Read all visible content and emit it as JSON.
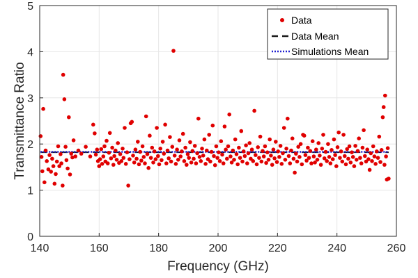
{
  "chart_data": {
    "type": "scatter",
    "title": "",
    "xlabel": "Frequency (GHz)",
    "ylabel": "Transmittance Ratio",
    "xlim": [
      140,
      260
    ],
    "ylim": [
      0,
      5
    ],
    "x_ticks": [
      "140",
      "160",
      "180",
      "200",
      "220",
      "240",
      "260"
    ],
    "y_ticks": [
      "0",
      "1",
      "2",
      "3",
      "4",
      "5"
    ],
    "grid": true,
    "legend": {
      "placement": "top-right",
      "entries": [
        "Data",
        "Data Mean",
        "Simulations Mean"
      ]
    },
    "colors": {
      "data": "#e00000",
      "data_mean": "#1a1a1a",
      "sim_mean": "#1f1fd0"
    },
    "series": [
      {
        "name": "Data",
        "style": "markers",
        "points": [
          [
            140.3,
            2.17
          ],
          [
            140.6,
            1.72
          ],
          [
            140.9,
            1.41
          ],
          [
            141.2,
            2.76
          ],
          [
            141.6,
            1.17
          ],
          [
            142.0,
            1.86
          ],
          [
            142.4,
            1.63
          ],
          [
            142.9,
            1.45
          ],
          [
            143.3,
            1.76
          ],
          [
            143.8,
            1.4
          ],
          [
            144.2,
            1.68
          ],
          [
            144.6,
            1.52
          ],
          [
            145.0,
            1.14
          ],
          [
            145.4,
            1.35
          ],
          [
            145.8,
            1.62
          ],
          [
            146.2,
            1.95
          ],
          [
            146.6,
            1.52
          ],
          [
            147.0,
            1.78
          ],
          [
            147.3,
            1.58
          ],
          [
            147.7,
            1.1
          ],
          [
            147.9,
            3.5
          ],
          [
            148.3,
            2.97
          ],
          [
            148.7,
            1.94
          ],
          [
            149.0,
            1.65
          ],
          [
            149.4,
            1.47
          ],
          [
            149.8,
            2.58
          ],
          [
            150.2,
            1.34
          ],
          [
            150.6,
            1.79
          ],
          [
            151.0,
            1.71
          ],
          [
            151.4,
            2.08
          ],
          [
            152.0,
            1.73
          ],
          [
            153.0,
            1.86
          ],
          [
            154.0,
            1.79
          ],
          [
            155.5,
            1.94
          ],
          [
            157.0,
            1.73
          ],
          [
            158.0,
            2.42
          ],
          [
            158.5,
            2.23
          ],
          [
            158.9,
            1.77
          ],
          [
            159.3,
            1.88
          ],
          [
            159.6,
            1.63
          ],
          [
            160.0,
            1.52
          ],
          [
            160.3,
            1.67
          ],
          [
            160.7,
            1.89
          ],
          [
            161.0,
            1.57
          ],
          [
            161.4,
            1.73
          ],
          [
            161.8,
            1.95
          ],
          [
            162.1,
            1.62
          ],
          [
            162.5,
            2.07
          ],
          [
            162.9,
            1.58
          ],
          [
            163.3,
            1.81
          ],
          [
            163.6,
            2.24
          ],
          [
            164.0,
            1.69
          ],
          [
            164.4,
            1.92
          ],
          [
            164.8,
            1.55
          ],
          [
            165.1,
            1.74
          ],
          [
            165.5,
            1.86
          ],
          [
            165.9,
            1.66
          ],
          [
            166.3,
            2.02
          ],
          [
            166.7,
            1.59
          ],
          [
            167.1,
            1.78
          ],
          [
            167.5,
            1.63
          ],
          [
            167.9,
            1.9
          ],
          [
            168.2,
            1.7
          ],
          [
            168.6,
            2.35
          ],
          [
            169.0,
            1.57
          ],
          [
            169.4,
            1.82
          ],
          [
            169.8,
            1.1
          ],
          [
            170.2,
            1.67
          ],
          [
            170.6,
            2.45
          ],
          [
            171.0,
            2.48
          ],
          [
            171.4,
            1.75
          ],
          [
            171.8,
            1.6
          ],
          [
            172.2,
            1.88
          ],
          [
            172.6,
            1.68
          ],
          [
            173.0,
            2.05
          ],
          [
            173.4,
            1.56
          ],
          [
            173.8,
            1.83
          ],
          [
            174.2,
            1.64
          ],
          [
            174.6,
            1.95
          ],
          [
            175.0,
            1.72
          ],
          [
            175.4,
            1.58
          ],
          [
            175.8,
            2.6
          ],
          [
            176.2,
            1.78
          ],
          [
            176.6,
            1.48
          ],
          [
            177.0,
            2.18
          ],
          [
            177.4,
            1.7
          ],
          [
            177.8,
            1.92
          ],
          [
            178.2,
            1.6
          ],
          [
            178.6,
            1.84
          ],
          [
            179.0,
            1.67
          ],
          [
            179.4,
            2.35
          ],
          [
            179.8,
            1.74
          ],
          [
            180.2,
            1.56
          ],
          [
            180.6,
            1.9
          ],
          [
            181.0,
            1.65
          ],
          [
            181.4,
            2.05
          ],
          [
            181.8,
            1.79
          ],
          [
            182.2,
            2.42
          ],
          [
            182.6,
            1.58
          ],
          [
            183.0,
            1.86
          ],
          [
            183.4,
            1.69
          ],
          [
            183.8,
            2.15
          ],
          [
            184.2,
            1.62
          ],
          [
            184.6,
            1.94
          ],
          [
            185.0,
            4.02
          ],
          [
            185.4,
            1.75
          ],
          [
            185.8,
            1.57
          ],
          [
            186.2,
            1.88
          ],
          [
            186.6,
            1.66
          ],
          [
            187.0,
            2.08
          ],
          [
            187.4,
            1.73
          ],
          [
            187.8,
            1.84
          ],
          [
            188.2,
            2.22
          ],
          [
            188.6,
            1.63
          ],
          [
            189.0,
            1.92
          ],
          [
            189.4,
            1.55
          ],
          [
            189.8,
            1.78
          ],
          [
            190.2,
            1.7
          ],
          [
            190.6,
            2.04
          ],
          [
            191.0,
            1.6
          ],
          [
            191.4,
            1.85
          ],
          [
            191.8,
            1.68
          ],
          [
            192.2,
            1.96
          ],
          [
            192.6,
            1.58
          ],
          [
            193.0,
            1.8
          ],
          [
            193.4,
            2.55
          ],
          [
            193.8,
            1.72
          ],
          [
            194.2,
            1.63
          ],
          [
            194.6,
            1.9
          ],
          [
            195.0,
            1.75
          ],
          [
            195.4,
            2.1
          ],
          [
            195.8,
            1.57
          ],
          [
            196.2,
            1.86
          ],
          [
            196.6,
            1.67
          ],
          [
            197.0,
            2.2
          ],
          [
            197.4,
            1.62
          ],
          [
            197.8,
            1.83
          ],
          [
            198.2,
            2.4
          ],
          [
            198.6,
            1.74
          ],
          [
            199.0,
            1.54
          ],
          [
            199.4,
            1.95
          ],
          [
            199.8,
            1.7
          ],
          [
            200.2,
            1.82
          ],
          [
            200.6,
            1.63
          ],
          [
            201.0,
            2.06
          ],
          [
            201.4,
            1.77
          ],
          [
            201.8,
            1.58
          ],
          [
            202.2,
            2.38
          ],
          [
            202.6,
            1.88
          ],
          [
            203.0,
            1.68
          ],
          [
            203.4,
            1.95
          ],
          [
            203.8,
            2.64
          ],
          [
            204.2,
            1.73
          ],
          [
            204.6,
            1.6
          ],
          [
            205.0,
            1.86
          ],
          [
            205.4,
            1.66
          ],
          [
            205.8,
            2.1
          ],
          [
            206.2,
            1.78
          ],
          [
            206.6,
            1.56
          ],
          [
            207.0,
            1.92
          ],
          [
            207.4,
            1.7
          ],
          [
            207.8,
            2.28
          ],
          [
            208.2,
            1.62
          ],
          [
            208.6,
            1.84
          ],
          [
            209.0,
            1.74
          ],
          [
            209.4,
            1.97
          ],
          [
            209.8,
            1.58
          ],
          [
            210.2,
            1.8
          ],
          [
            210.6,
            2.02
          ],
          [
            211.0,
            1.68
          ],
          [
            211.4,
            1.88
          ],
          [
            211.8,
            1.63
          ],
          [
            212.2,
            2.72
          ],
          [
            212.6,
            1.76
          ],
          [
            213.0,
            1.56
          ],
          [
            213.4,
            1.93
          ],
          [
            213.8,
            1.7
          ],
          [
            214.2,
            2.16
          ],
          [
            214.6,
            1.62
          ],
          [
            215.0,
            1.85
          ],
          [
            215.4,
            1.73
          ],
          [
            215.8,
            1.95
          ],
          [
            216.2,
            1.59
          ],
          [
            216.6,
            1.82
          ],
          [
            217.0,
            1.66
          ],
          [
            217.4,
            2.1
          ],
          [
            217.8,
            1.75
          ],
          [
            218.2,
            1.55
          ],
          [
            218.6,
            1.88
          ],
          [
            219.0,
            1.69
          ],
          [
            219.4,
            2.05
          ],
          [
            219.8,
            1.61
          ],
          [
            220.2,
            1.84
          ],
          [
            220.6,
            1.72
          ],
          [
            221.0,
            1.96
          ],
          [
            221.4,
            1.57
          ],
          [
            221.8,
            1.8
          ],
          [
            222.2,
            2.35
          ],
          [
            222.6,
            1.66
          ],
          [
            223.0,
            1.9
          ],
          [
            223.4,
            2.55
          ],
          [
            223.8,
            1.74
          ],
          [
            224.2,
            1.58
          ],
          [
            224.6,
            1.86
          ],
          [
            225.0,
            2.12
          ],
          [
            225.4,
            1.68
          ],
          [
            225.8,
            1.38
          ],
          [
            226.2,
            1.79
          ],
          [
            226.6,
            1.62
          ],
          [
            227.0,
            1.94
          ],
          [
            227.4,
            1.72
          ],
          [
            227.8,
            2.0
          ],
          [
            228.2,
            1.56
          ],
          [
            228.6,
            2.2
          ],
          [
            229.0,
            2.18
          ],
          [
            229.4,
            1.76
          ],
          [
            229.8,
            1.64
          ],
          [
            230.2,
            1.92
          ],
          [
            230.6,
            1.7
          ],
          [
            231.0,
            1.85
          ],
          [
            231.4,
            1.58
          ],
          [
            231.8,
            2.06
          ],
          [
            232.2,
            1.73
          ],
          [
            232.6,
            1.6
          ],
          [
            233.0,
            1.88
          ],
          [
            233.4,
            1.66
          ],
          [
            233.8,
            2.02
          ],
          [
            234.2,
            1.75
          ],
          [
            234.6,
            1.55
          ],
          [
            235.0,
            1.9
          ],
          [
            235.4,
            2.2
          ],
          [
            235.8,
            1.69
          ],
          [
            236.2,
            1.83
          ],
          [
            236.6,
            1.63
          ],
          [
            237.0,
            2.0
          ],
          [
            237.4,
            1.72
          ],
          [
            237.8,
            1.58
          ],
          [
            238.2,
            1.87
          ],
          [
            238.6,
            1.67
          ],
          [
            239.0,
            2.1
          ],
          [
            239.4,
            1.76
          ],
          [
            239.8,
            1.52
          ],
          [
            240.2,
            1.93
          ],
          [
            240.6,
            2.25
          ],
          [
            241.0,
            1.7
          ],
          [
            241.4,
            1.84
          ],
          [
            241.8,
            1.62
          ],
          [
            242.2,
            2.2
          ],
          [
            242.6,
            1.74
          ],
          [
            243.0,
            1.56
          ],
          [
            243.4,
            1.89
          ],
          [
            243.8,
            1.68
          ],
          [
            244.2,
            1.95
          ],
          [
            244.6,
            1.6
          ],
          [
            245.0,
            1.82
          ],
          [
            245.4,
            1.72
          ],
          [
            245.8,
            1.52
          ],
          [
            246.2,
            1.96
          ],
          [
            246.6,
            1.66
          ],
          [
            247.0,
            1.85
          ],
          [
            247.4,
            2.12
          ],
          [
            247.8,
            1.7
          ],
          [
            248.2,
            1.58
          ],
          [
            248.6,
            1.92
          ],
          [
            249.0,
            2.3
          ],
          [
            249.4,
            1.74
          ],
          [
            249.8,
            1.62
          ],
          [
            250.2,
            1.88
          ],
          [
            250.6,
            1.67
          ],
          [
            251.0,
            1.44
          ],
          [
            251.4,
            1.8
          ],
          [
            251.8,
            1.63
          ],
          [
            252.2,
            1.95
          ],
          [
            252.6,
            1.73
          ],
          [
            253.0,
            1.57
          ],
          [
            253.4,
            1.84
          ],
          [
            253.8,
            1.7
          ],
          [
            254.2,
            2.16
          ],
          [
            254.6,
            1.61
          ],
          [
            255.0,
            1.87
          ],
          [
            255.4,
            2.58
          ],
          [
            255.7,
            2.8
          ],
          [
            256.0,
            1.55
          ],
          [
            256.2,
            3.05
          ],
          [
            256.5,
            1.73
          ],
          [
            256.8,
            1.23
          ],
          [
            257.1,
            1.91
          ],
          [
            257.4,
            1.25
          ]
        ]
      },
      {
        "name": "Data Mean",
        "style": "dashed",
        "y": 1.82
      },
      {
        "name": "Simulations Mean",
        "style": "dotted",
        "y": 1.83
      }
    ]
  }
}
